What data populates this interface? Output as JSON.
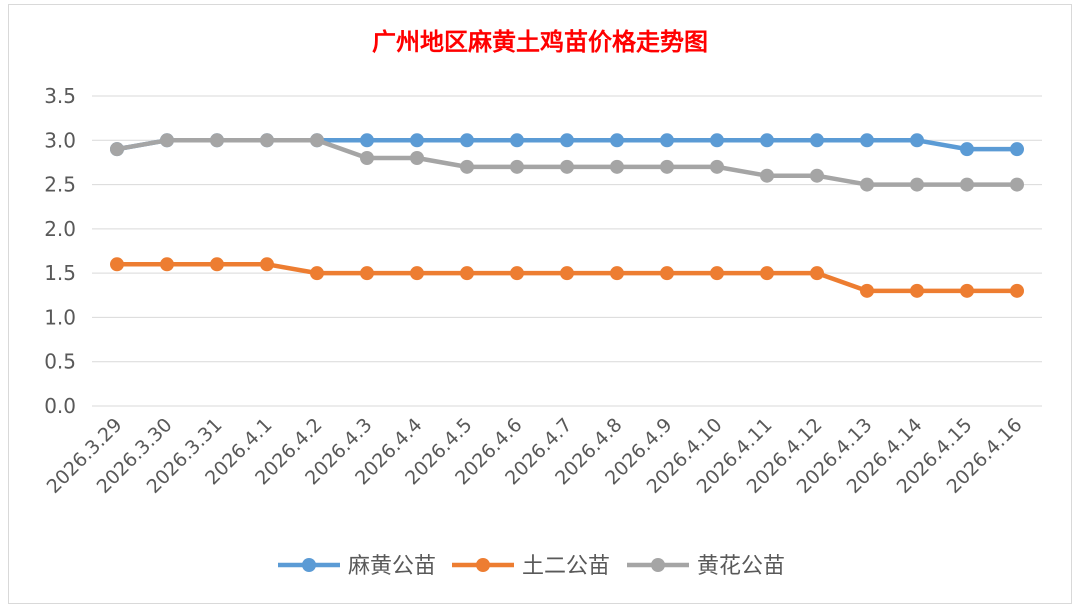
{
  "chart_data": {
    "type": "line",
    "title": "广州地区麻黄土鸡苗价格走势图",
    "xlabel": "",
    "ylabel": "",
    "ylim": [
      0,
      3.5
    ],
    "yticks": [
      "0.0",
      "0.5",
      "1.0",
      "1.5",
      "2.0",
      "2.5",
      "3.0",
      "3.5"
    ],
    "grid": true,
    "legend_position": "bottom",
    "categories": [
      "2026.3.29",
      "2026.3.30",
      "2026.3.31",
      "2026.4.1",
      "2026.4.2",
      "2026.4.3",
      "2026.4.4",
      "2026.4.5",
      "2026.4.6",
      "2026.4.7",
      "2026.4.8",
      "2026.4.9",
      "2026.4.10",
      "2026.4.11",
      "2026.4.12",
      "2026.4.13",
      "2026.4.14",
      "2026.4.15",
      "2026.4.16"
    ],
    "series": [
      {
        "name": "麻黄公苗",
        "color": "#5b9bd5",
        "values": [
          2.9,
          3.0,
          3.0,
          3.0,
          3.0,
          3.0,
          3.0,
          3.0,
          3.0,
          3.0,
          3.0,
          3.0,
          3.0,
          3.0,
          3.0,
          3.0,
          3.0,
          2.9,
          2.9
        ]
      },
      {
        "name": "土二公苗",
        "color": "#ed7d31",
        "values": [
          1.6,
          1.6,
          1.6,
          1.6,
          1.5,
          1.5,
          1.5,
          1.5,
          1.5,
          1.5,
          1.5,
          1.5,
          1.5,
          1.5,
          1.5,
          1.3,
          1.3,
          1.3,
          1.3
        ]
      },
      {
        "name": "黄花公苗",
        "color": "#a5a5a5",
        "values": [
          2.9,
          3.0,
          3.0,
          3.0,
          3.0,
          2.8,
          2.8,
          2.7,
          2.7,
          2.7,
          2.7,
          2.7,
          2.7,
          2.6,
          2.6,
          2.5,
          2.5,
          2.5,
          2.5
        ]
      }
    ],
    "title_color": "#ff0000"
  }
}
